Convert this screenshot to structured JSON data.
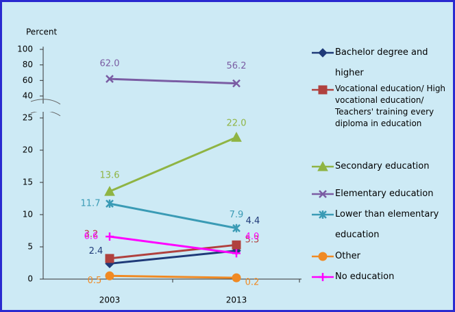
{
  "chart_data": {
    "type": "line",
    "ylabel": "Percent",
    "categories": [
      "2003",
      "2013"
    ],
    "ylim": [
      0,
      100
    ],
    "ybreak": [
      25,
      40
    ],
    "yticks": [
      0,
      5,
      10,
      15,
      20,
      25,
      40,
      60,
      80,
      100
    ],
    "grid": false,
    "legend": "right",
    "series": [
      {
        "name": "Bachelor degree and higher",
        "color": "#1f3a78",
        "marker": "diamond",
        "values": [
          2.4,
          4.4
        ],
        "value_labels": [
          "2.4",
          "4.4"
        ]
      },
      {
        "name": "Vocational education/ High vocational education/ Teachers' training every diploma in education",
        "color": "#b0413e",
        "marker": "square",
        "values": [
          3.2,
          5.3
        ],
        "value_labels": [
          "3.2",
          "5.3"
        ]
      },
      {
        "name": "Secondary education",
        "color": "#8fb443",
        "marker": "triangle",
        "values": [
          13.6,
          22.0
        ],
        "value_labels": [
          "13.6",
          "22.0"
        ]
      },
      {
        "name": "Elementary education",
        "color": "#7a5ca3",
        "marker": "x",
        "values": [
          62.0,
          56.2
        ],
        "value_labels": [
          "62.0",
          "56.2"
        ]
      },
      {
        "name": "Lower than elementary education",
        "color": "#3a9bb5",
        "marker": "asterisk",
        "values": [
          11.7,
          7.9
        ],
        "value_labels": [
          "11.7",
          "7.9"
        ]
      },
      {
        "name": "Other",
        "color": "#f08a24",
        "marker": "circle",
        "values": [
          0.5,
          0.2
        ],
        "value_labels": [
          "0.5",
          "0.2"
        ]
      },
      {
        "name": "No education",
        "color": "#ff00ff",
        "marker": "plus",
        "values": [
          6.6,
          4.0
        ],
        "value_labels": [
          "6.6",
          "4.0"
        ]
      }
    ]
  }
}
